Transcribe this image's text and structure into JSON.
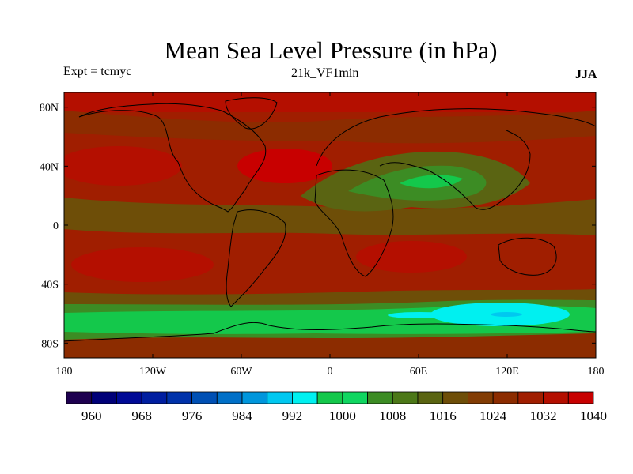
{
  "header": {
    "title": "Mean Sea Level Pressure (in hPa)",
    "left_note": "Expt = tcmyc",
    "center_note": "21k_VF1min",
    "right_note": "JJA"
  },
  "axes": {
    "lat_labels": [
      "80N",
      "40N",
      "0",
      "40S",
      "80S"
    ],
    "lat_values": [
      80,
      40,
      0,
      -40,
      -80
    ],
    "lon_labels": [
      "180",
      "120W",
      "60W",
      "0",
      "60E",
      "120E",
      "180"
    ],
    "lon_values": [
      -180,
      -120,
      -60,
      0,
      60,
      120,
      180
    ]
  },
  "colorbar": {
    "colors": [
      "#1e0050",
      "#000078",
      "#000a96",
      "#001ea0",
      "#0032aa",
      "#0050b4",
      "#0070c8",
      "#0096dc",
      "#00c8f0",
      "#00f0f0",
      "#14c84b",
      "#10d660",
      "#3c8c24",
      "#4c7818",
      "#5a6412",
      "#6e4e08",
      "#823c04",
      "#8c2c00",
      "#a01e00",
      "#b40f00",
      "#c80000"
    ],
    "labels": [
      "960",
      "968",
      "976",
      "984",
      "992",
      "1000",
      "1008",
      "1016",
      "1024",
      "1032",
      "1040"
    ],
    "units": "hPa"
  },
  "map_colors": {
    "ocean_high": "#c80000",
    "high": "#a01e00",
    "mid": "#8c2c00",
    "brown": "#6e4e08",
    "olive": "#5a6412",
    "green_dark": "#3c8c24",
    "green": "#14c84b",
    "cyan": "#00f0f0",
    "coast": "#000000"
  }
}
